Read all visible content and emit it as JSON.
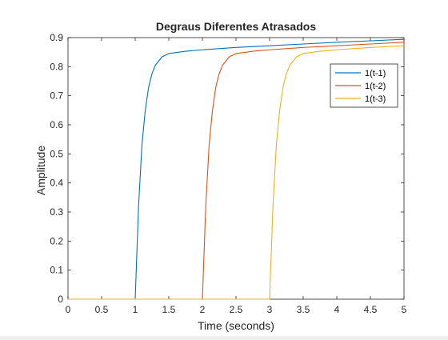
{
  "chart_data": {
    "type": "line",
    "title": "Degraus Diferentes Atrasados",
    "xlabel": "Time (seconds)",
    "ylabel": "Amplitude",
    "xlim": [
      0,
      5
    ],
    "ylim": [
      0,
      0.9
    ],
    "xticks": [
      0,
      0.5,
      1,
      1.5,
      2,
      2.5,
      3,
      3.5,
      4,
      4.5,
      5
    ],
    "xtick_labels": [
      "0",
      "0.5",
      "1",
      "1.5",
      "2",
      "2.5",
      "3",
      "3.5",
      "4",
      "4.5",
      "5"
    ],
    "yticks": [
      0,
      0.1,
      0.2,
      0.3,
      0.4,
      0.5,
      0.6,
      0.7,
      0.8,
      0.9
    ],
    "ytick_labels": [
      "0",
      "0.1",
      "0.2",
      "0.3",
      "0.4",
      "0.5",
      "0.6",
      "0.7",
      "0.8",
      "0.9"
    ],
    "grid": false,
    "legend_position": "top-right",
    "series": [
      {
        "name": "1(t-1)",
        "color": "#0072BD",
        "x": [
          0,
          1,
          1,
          1.05,
          1.1,
          1.15,
          1.2,
          1.25,
          1.3,
          1.4,
          1.5,
          1.75,
          2,
          2.5,
          3,
          3.5,
          4,
          4.5,
          5
        ],
        "y": [
          0,
          0,
          0,
          0.32,
          0.53,
          0.65,
          0.73,
          0.776,
          0.805,
          0.834,
          0.845,
          0.853,
          0.858,
          0.866,
          0.872,
          0.878,
          0.884,
          0.889,
          0.894
        ]
      },
      {
        "name": "1(t-2)",
        "color": "#D95319",
        "x": [
          0,
          2,
          2,
          2.05,
          2.1,
          2.15,
          2.2,
          2.25,
          2.3,
          2.4,
          2.5,
          2.75,
          3,
          3.5,
          4,
          4.5,
          5
        ],
        "y": [
          0,
          0,
          0,
          0.32,
          0.53,
          0.65,
          0.73,
          0.776,
          0.805,
          0.834,
          0.845,
          0.853,
          0.858,
          0.866,
          0.872,
          0.878,
          0.884
        ]
      },
      {
        "name": "1(t-3)",
        "color": "#EDB120",
        "x": [
          0,
          3,
          3,
          3.05,
          3.1,
          3.15,
          3.2,
          3.25,
          3.3,
          3.4,
          3.5,
          3.75,
          4,
          4.5,
          5
        ],
        "y": [
          0,
          0,
          0,
          0.32,
          0.53,
          0.65,
          0.73,
          0.776,
          0.805,
          0.834,
          0.845,
          0.853,
          0.858,
          0.866,
          0.872
        ]
      }
    ]
  }
}
